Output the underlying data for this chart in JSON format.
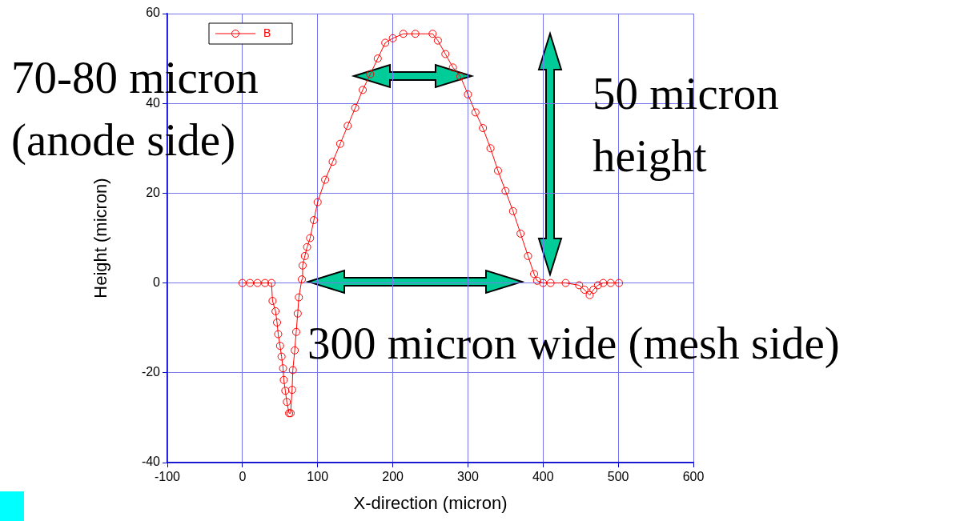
{
  "chart_data": {
    "type": "line",
    "xlabel": "X-direction (micron)",
    "ylabel": "Height (micron)",
    "xlim": [
      -100,
      600
    ],
    "xticks": [
      -100,
      0,
      100,
      200,
      300,
      400,
      500,
      600
    ],
    "ylim": [
      -40,
      60
    ],
    "yticks": [
      -40,
      -20,
      0,
      20,
      40,
      60
    ],
    "grid": true,
    "legend": "top left",
    "marker": "circle",
    "line_style": "solid",
    "series": [
      {
        "name": "B",
        "color": "#ff0000",
        "x": [
          0,
          10,
          20,
          30,
          38.6,
          40,
          44,
          46,
          47.5,
          50,
          52,
          54,
          55,
          57,
          59,
          62,
          64,
          66,
          67,
          69.5,
          71.5,
          73.5,
          75,
          79,
          80,
          83,
          86,
          90,
          95,
          100,
          110,
          120,
          130,
          140,
          150,
          160,
          170,
          180,
          190,
          200,
          214,
          230,
          253,
          260,
          270,
          280,
          290,
          300,
          310,
          320,
          330,
          340,
          350,
          360,
          370,
          380,
          388,
          392,
          400,
          410,
          430,
          448,
          455,
          462,
          467,
          473,
          480,
          490,
          501
        ],
        "values": [
          0,
          0,
          0,
          0,
          0,
          -4,
          -6.3,
          -8.8,
          -11.4,
          -14,
          -16.4,
          -19,
          -21.6,
          -24,
          -26.5,
          -29,
          -29,
          -23.8,
          -19.4,
          -15,
          -10.9,
          -6.8,
          -3.2,
          0.8,
          3.9,
          6,
          8,
          10,
          14,
          18,
          23,
          27,
          31,
          35,
          39,
          43,
          46.5,
          50,
          53.5,
          54.5,
          55.5,
          55.5,
          55.5,
          54,
          51,
          48,
          46,
          42,
          38,
          34.5,
          30,
          25,
          20.5,
          16,
          11,
          6,
          2,
          0.5,
          0,
          0,
          0,
          -0.5,
          -1.5,
          -2.7,
          -1.5,
          -0.5,
          0,
          0,
          0
        ]
      }
    ],
    "annotations": [
      "70-80 micron\n(anode side)",
      "50 micron\nheight",
      "300 micron wide (mesh side)"
    ]
  }
}
